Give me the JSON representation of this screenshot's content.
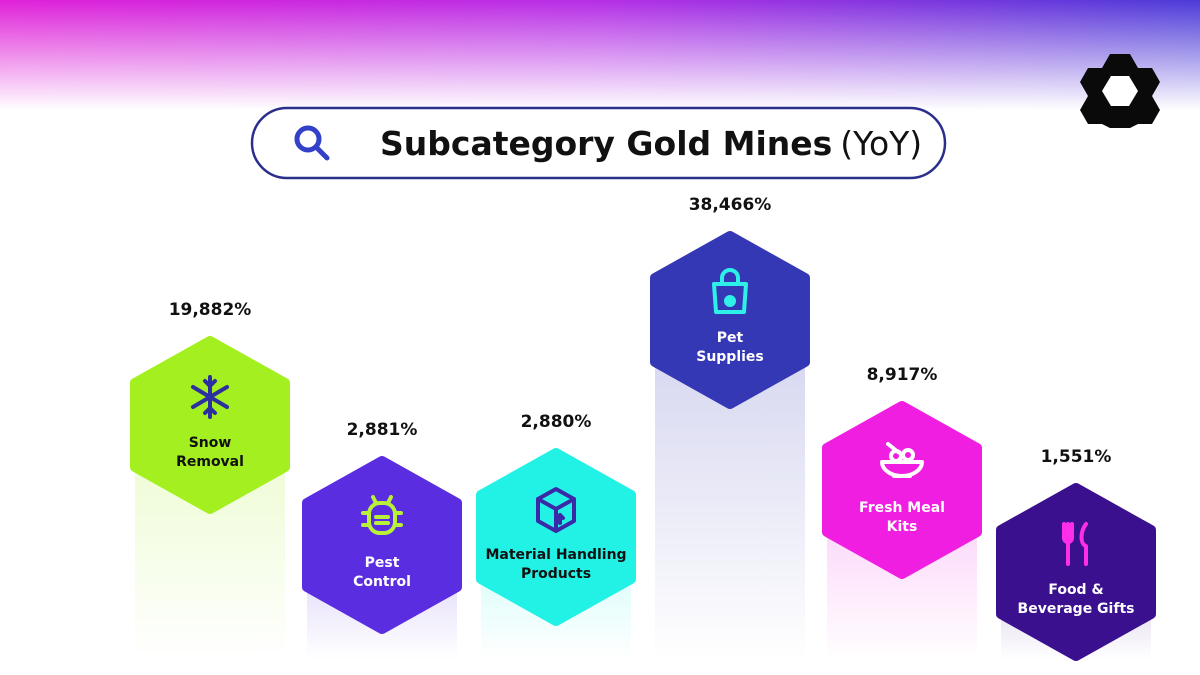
{
  "header": {
    "title": "Subcategory Gold Mines",
    "title_suffix": "(YoY)"
  },
  "items": [
    {
      "label_lines": [
        "Snow",
        "Removal"
      ],
      "value": "19,882%"
    },
    {
      "label_lines": [
        "Pest",
        "Control"
      ],
      "value": "2,881%"
    },
    {
      "label_lines": [
        "Material Handling",
        "Products"
      ],
      "value": "2,880%"
    },
    {
      "label_lines": [
        "Pet",
        "Supplies"
      ],
      "value": "38,466%"
    },
    {
      "label_lines": [
        "Fresh Meal",
        "Kits"
      ],
      "value": "8,917%"
    },
    {
      "label_lines": [
        "Food &",
        "Beverage Gifts"
      ],
      "value": "1,551%"
    }
  ]
}
